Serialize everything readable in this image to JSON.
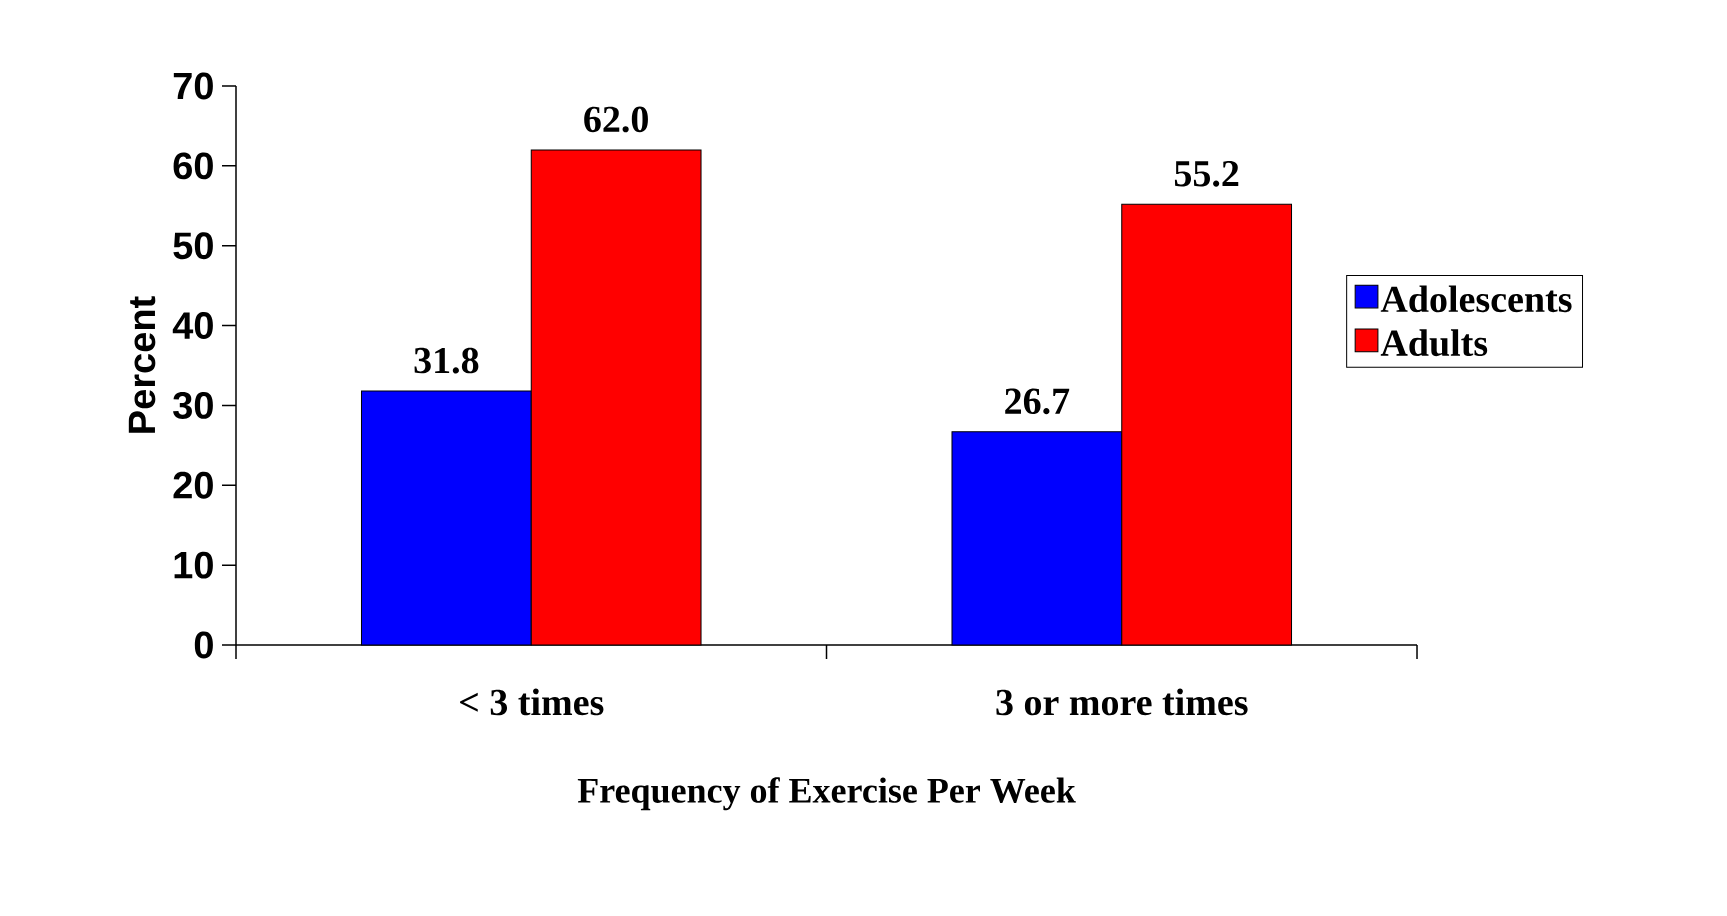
{
  "chart_data": {
    "type": "bar",
    "xlabel": "Frequency of Exercise Per Week",
    "ylabel": "Percent",
    "categories": [
      "< 3 times",
      "3 or more times"
    ],
    "series": [
      {
        "name": "Adolescents",
        "color": "#0000ff",
        "values": [
          31.8,
          26.7
        ],
        "value_labels": [
          "31.8",
          "26.7"
        ]
      },
      {
        "name": "Adults",
        "color": "#ff0000",
        "values": [
          62.0,
          55.2
        ],
        "value_labels": [
          "62.0",
          "55.2"
        ]
      }
    ],
    "ylim": [
      0,
      70
    ],
    "yticks": [
      0,
      10,
      20,
      30,
      40,
      50,
      60,
      70
    ],
    "legend": "right",
    "grid": false
  }
}
